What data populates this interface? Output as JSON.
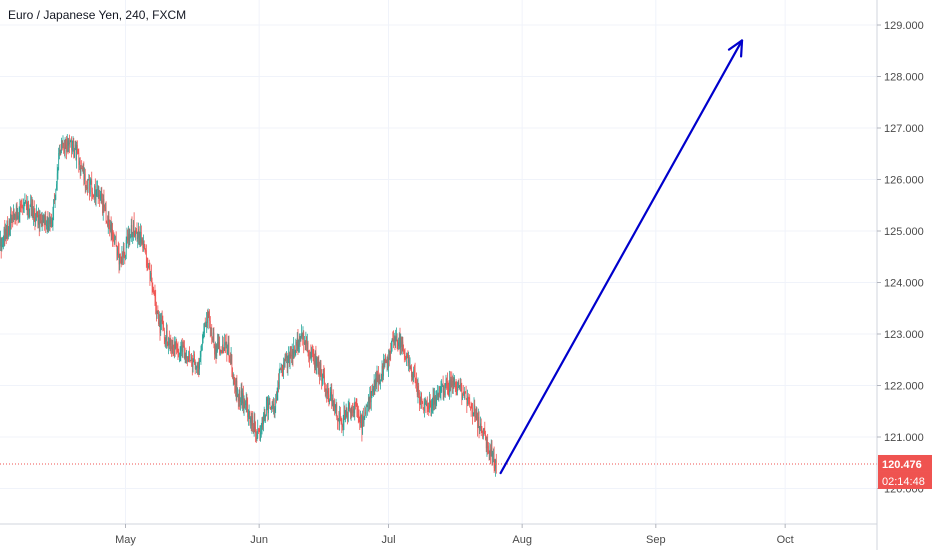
{
  "chart_data": {
    "type": "candlestick",
    "title": "Euro / Japanese Yen, 240, FXCM",
    "x_tick_labels": [
      "May",
      "Jun",
      "Jul",
      "Aug",
      "Sep",
      "Oct"
    ],
    "y_tick_labels": [
      "120.000",
      "121.000",
      "122.000",
      "123.000",
      "124.000",
      "125.000",
      "126.000",
      "127.000",
      "128.000",
      "129.000"
    ],
    "y_ticks": [
      120,
      121,
      122,
      123,
      124,
      125,
      126,
      127,
      128,
      129
    ],
    "ylim": [
      119.2,
      129.55
    ],
    "grid": true,
    "price_path": [
      [
        "2020-04-02",
        124.7
      ],
      [
        "2020-04-05",
        125.3
      ],
      [
        "2020-04-08",
        125.5
      ],
      [
        "2020-04-11",
        125.2
      ],
      [
        "2020-04-14",
        125.1
      ],
      [
        "2020-04-15",
        125.9
      ],
      [
        "2020-04-16",
        126.6
      ],
      [
        "2020-04-18",
        126.7
      ],
      [
        "2020-04-20",
        126.5
      ],
      [
        "2020-04-22",
        125.9
      ],
      [
        "2020-04-25",
        125.7
      ],
      [
        "2020-04-28",
        125.0
      ],
      [
        "2020-04-30",
        124.4
      ],
      [
        "2020-05-03",
        125.1
      ],
      [
        "2020-05-05",
        124.8
      ],
      [
        "2020-05-07",
        124.1
      ],
      [
        "2020-05-09",
        123.2
      ],
      [
        "2020-05-11",
        122.9
      ],
      [
        "2020-05-13",
        122.7
      ],
      [
        "2020-05-16",
        122.6
      ],
      [
        "2020-05-18",
        122.3
      ],
      [
        "2020-05-20",
        123.4
      ],
      [
        "2020-05-22",
        122.7
      ],
      [
        "2020-05-25",
        122.7
      ],
      [
        "2020-05-27",
        121.9
      ],
      [
        "2020-05-29",
        121.6
      ],
      [
        "2020-06-01",
        121.0
      ],
      [
        "2020-06-03",
        121.6
      ],
      [
        "2020-06-05",
        121.6
      ],
      [
        "2020-06-06",
        122.3
      ],
      [
        "2020-06-09",
        122.6
      ],
      [
        "2020-06-11",
        123.0
      ],
      [
        "2020-06-13",
        122.6
      ],
      [
        "2020-06-15",
        122.4
      ],
      [
        "2020-06-17",
        121.9
      ],
      [
        "2020-06-20",
        121.3
      ],
      [
        "2020-06-23",
        121.6
      ],
      [
        "2020-06-25",
        121.2
      ],
      [
        "2020-06-27",
        121.8
      ],
      [
        "2020-06-29",
        122.2
      ],
      [
        "2020-07-01",
        122.5
      ],
      [
        "2020-07-02",
        122.8
      ],
      [
        "2020-07-04",
        122.9
      ],
      [
        "2020-07-05",
        122.5
      ],
      [
        "2020-07-07",
        122.2
      ],
      [
        "2020-07-09",
        121.6
      ],
      [
        "2020-07-11",
        121.6
      ],
      [
        "2020-07-13",
        121.9
      ],
      [
        "2020-07-15",
        122.0
      ],
      [
        "2020-07-17",
        122.0
      ],
      [
        "2020-07-19",
        121.7
      ],
      [
        "2020-07-21",
        121.5
      ],
      [
        "2020-07-23",
        121.1
      ],
      [
        "2020-07-25",
        120.7
      ],
      [
        "2020-07-26",
        120.45
      ]
    ],
    "last_price": {
      "label": "120.476",
      "value": 120.476,
      "countdown": "02:14:48",
      "color": "#ef5350"
    },
    "arrow": {
      "from": [
        "2020-07-27",
        120.3
      ],
      "to": [
        "2020-09-21",
        128.7
      ],
      "color": "#0000cc"
    },
    "colors": {
      "up": "#26a69a",
      "down": "#ef5350",
      "grid": "#f0f3fa",
      "axis_text": "#4a4a4a"
    }
  }
}
